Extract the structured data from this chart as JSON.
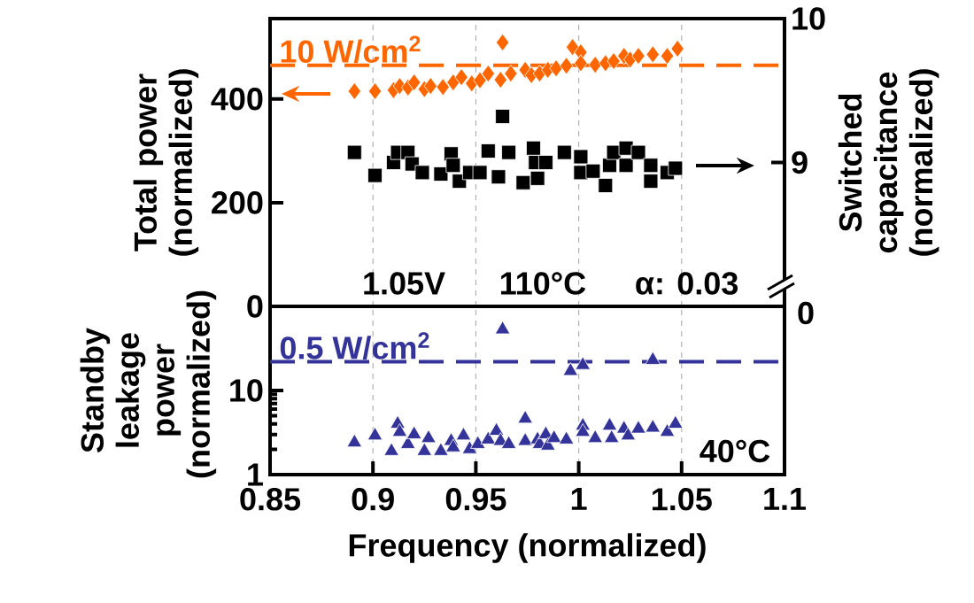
{
  "chart_data": [
    {
      "type": "scatter",
      "ylabel": "Total power (normalized)",
      "y2label": "Switched capacitance (normalized)",
      "xlim": [
        0.85,
        1.1
      ],
      "xticks": [
        0.85,
        0.9,
        0.95,
        1,
        1.05,
        1.1
      ],
      "ylim": [
        0,
        555
      ],
      "yticks": [
        0,
        200,
        400
      ],
      "y2lim": [
        8,
        10
      ],
      "y2ticks": [
        9,
        10
      ],
      "grid": "x",
      "tick_labels": "y",
      "series": [
        {
          "color": "#ff6600",
          "marker": "diamond",
          "x": [
            0.891,
            0.901,
            0.91,
            0.913,
            0.917,
            0.92,
            0.925,
            0.928,
            0.934,
            0.939,
            0.943,
            0.948,
            0.952,
            0.956,
            0.962,
            0.963,
            0.967,
            0.974,
            0.977,
            0.981,
            0.985,
            0.989,
            0.994,
            0.997,
            1.001,
            1.001,
            1.008,
            1.013,
            1.017,
            1.022,
            1.025,
            1.029,
            1.036,
            1.043,
            1.048
          ],
          "values": [
            415,
            415,
            417,
            425,
            422,
            432,
            419,
            425,
            423,
            432,
            442,
            430,
            436,
            449,
            437,
            509,
            449,
            456,
            446,
            449,
            456,
            459,
            464,
            500,
            490,
            469,
            466,
            469,
            473,
            483,
            476,
            483,
            486,
            483,
            497
          ]
        },
        {
          "color": "#000000",
          "marker": "square",
          "axis": "y2",
          "x": [
            0.891,
            0.901,
            0.91,
            0.912,
            0.917,
            0.919,
            0.924,
            0.933,
            0.938,
            0.939,
            0.942,
            0.947,
            0.952,
            0.956,
            0.961,
            0.963,
            0.966,
            0.973,
            0.978,
            0.98,
            0.979,
            0.984,
            0.993,
            1.001,
            1.001,
            1.007,
            1.013,
            1.015,
            1.017,
            1.023,
            1.023,
            1.029,
            1.035,
            1.035,
            1.043,
            1.047
          ],
          "values": [
            9.07,
            8.91,
            9.0,
            9.07,
            9.07,
            8.99,
            8.93,
            8.92,
            9.06,
            8.98,
            8.87,
            8.93,
            8.93,
            9.08,
            8.9,
            9.32,
            9.07,
            8.86,
            9.1,
            8.89,
            9.0,
            9.0,
            9.07,
            9.04,
            8.93,
            8.94,
            8.84,
            8.98,
            9.07,
            9.1,
            8.98,
            9.07,
            8.98,
            8.87,
            8.93,
            8.96
          ]
        }
      ],
      "ref_lines": [
        {
          "axis": "y",
          "value": 465,
          "label": "10 W/cm$^{2}$",
          "color": "#ff6600",
          "line_style": "dashed"
        }
      ],
      "annotations": [
        "1.05V",
        "110°C",
        "α: 0.03"
      ]
    },
    {
      "type": "scatter",
      "ylabel": "Standby leakage power (normalized)",
      "xlabel": "Frequency (normalized)",
      "xlim": [
        0.85,
        1.1
      ],
      "xticks": [
        0.85,
        0.9,
        0.95,
        1,
        1.05,
        1.1
      ],
      "ylim": [
        1,
        100
      ],
      "yticks": [
        1,
        10
      ],
      "log": true,
      "grid": "x",
      "series": [
        {
          "color": "#333399",
          "marker": "triangle",
          "x": [
            0.891,
            0.901,
            0.912,
            0.909,
            0.913,
            0.917,
            0.92,
            0.925,
            0.927,
            0.933,
            0.938,
            0.939,
            0.944,
            0.947,
            0.951,
            0.956,
            0.96,
            0.962,
            0.966,
            0.963,
            0.974,
            0.974,
            0.98,
            0.981,
            0.984,
            0.985,
            0.988,
            0.994,
            0.996,
            1.002,
            1.002,
            1.002,
            1.008,
            1.015,
            1.016,
            1.022,
            1.024,
            1.029,
            1.036,
            1.036,
            1.043,
            1.047
          ],
          "values": [
            2.4,
            2.9,
            4.0,
            1.9,
            3.2,
            2.3,
            3.0,
            1.9,
            2.7,
            1.9,
            2.5,
            2.1,
            2.9,
            2.0,
            2.3,
            2.6,
            3.3,
            2.5,
            2.3,
            53,
            4.6,
            2.5,
            2.6,
            2.3,
            3.0,
            2.2,
            2.7,
            2.6,
            17,
            20,
            3.8,
            3.2,
            2.7,
            3.8,
            2.7,
            3.5,
            2.9,
            3.5,
            3.6,
            23,
            3.2,
            4.0
          ]
        }
      ],
      "ref_lines": [
        {
          "axis": "y",
          "value": 22,
          "label": "0.5 W/cm$^{2}$",
          "color": "#333399",
          "line_style": "dashed"
        }
      ],
      "annotations": [
        "40°C",
        "0"
      ]
    }
  ]
}
